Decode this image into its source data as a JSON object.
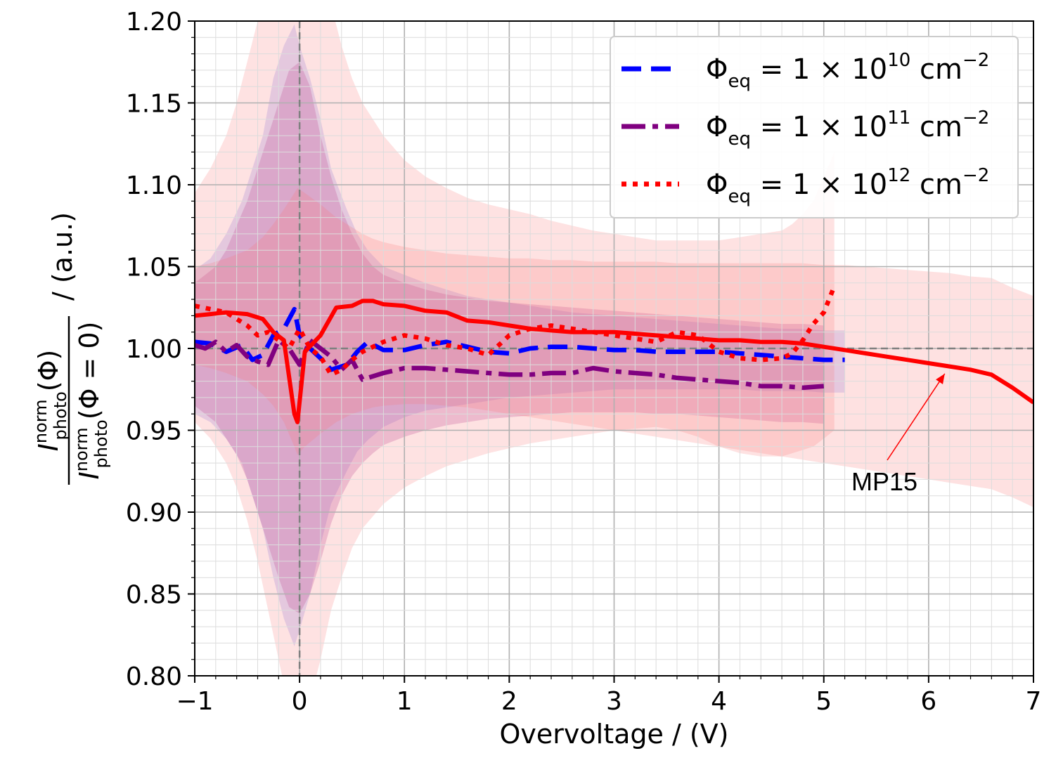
{
  "chart_data": {
    "type": "line",
    "xlabel": "Overvoltage / (V)",
    "ylabel": {
      "numerator": "I",
      "numerator_sup": "norm",
      "numerator_sub": "photo",
      "numerator_arg": "(Φ)",
      "denominator": "I",
      "denominator_sup": "norm",
      "denominator_sub": "photo",
      "denominator_arg": "(Φ = 0)",
      "unit": "/ (a.u.)"
    },
    "xlim": [
      -1,
      7
    ],
    "ylim": [
      0.8,
      1.2
    ],
    "x_ticks": [
      "−1",
      "0",
      "1",
      "2",
      "3",
      "4",
      "5",
      "6",
      "7"
    ],
    "y_ticks": [
      "0.80",
      "0.85",
      "0.90",
      "0.95",
      "1.00",
      "1.05",
      "1.10",
      "1.15",
      "1.20"
    ],
    "grid": true,
    "reference_lines": {
      "x": 0,
      "y": 1.0
    },
    "legend_position": "top-right",
    "series": [
      {
        "name": "Φeq = 1 × 10^10 cm^−2",
        "legend": {
          "base": "Φ",
          "sub": "eq",
          "eq": " = 1 × 10",
          "exp": "10",
          "unit": " cm",
          "unit_exp": "−2"
        },
        "color": "#0000ff",
        "style": "dashed",
        "x": [
          -1.0,
          -0.85,
          -0.7,
          -0.55,
          -0.45,
          -0.35,
          -0.25,
          -0.15,
          -0.05,
          0.0,
          0.1,
          0.2,
          0.3,
          0.45,
          0.55,
          0.65,
          0.8,
          1.0,
          1.2,
          1.4,
          1.6,
          1.8,
          2.0,
          2.2,
          2.4,
          2.6,
          2.8,
          3.0,
          3.2,
          3.4,
          3.6,
          3.8,
          4.0,
          4.2,
          4.4,
          4.6,
          4.8,
          5.0,
          5.2
        ],
        "y": [
          1.004,
          1.003,
          0.998,
          1.002,
          0.993,
          0.996,
          1.008,
          1.012,
          1.024,
          1.008,
          1.0,
          0.994,
          0.987,
          0.99,
          0.998,
          1.004,
          0.999,
          0.999,
          1.002,
          1.004,
          1.001,
          0.998,
          0.997,
          1.0,
          1.001,
          1.001,
          1.0,
          0.999,
          0.999,
          0.998,
          0.998,
          0.998,
          0.998,
          0.997,
          0.996,
          0.995,
          0.994,
          0.993,
          0.993
        ],
        "band_upper": [
          1.048,
          1.055,
          1.07,
          1.09,
          1.11,
          1.13,
          1.165,
          1.185,
          1.198,
          1.185,
          1.165,
          1.14,
          1.11,
          1.085,
          1.07,
          1.06,
          1.05,
          1.045,
          1.04,
          1.036,
          1.032,
          1.03,
          1.028,
          1.026,
          1.024,
          1.022,
          1.021,
          1.02,
          1.019,
          1.018,
          1.017,
          1.016,
          1.015,
          1.014,
          1.013,
          1.012,
          1.012,
          1.011,
          1.011
        ],
        "band_lower": [
          0.96,
          0.955,
          0.945,
          0.93,
          0.91,
          0.89,
          0.86,
          0.835,
          0.818,
          0.828,
          0.85,
          0.88,
          0.905,
          0.925,
          0.937,
          0.944,
          0.952,
          0.958,
          0.962,
          0.964,
          0.966,
          0.968,
          0.97,
          0.971,
          0.972,
          0.973,
          0.974,
          0.975,
          0.975,
          0.975,
          0.975,
          0.975,
          0.975,
          0.975,
          0.974,
          0.974,
          0.974,
          0.973,
          0.973
        ]
      },
      {
        "name": "Φeq = 1 × 10^11 cm^−2",
        "legend": {
          "base": "Φ",
          "sub": "eq",
          "eq": " = 1 × 10",
          "exp": "11",
          "unit": " cm",
          "unit_exp": "−2"
        },
        "color": "#800080",
        "style": "dashdot",
        "x": [
          -1.0,
          -0.9,
          -0.8,
          -0.7,
          -0.6,
          -0.5,
          -0.4,
          -0.3,
          -0.2,
          -0.1,
          0.0,
          0.1,
          0.2,
          0.3,
          0.4,
          0.5,
          0.6,
          0.7,
          0.8,
          1.0,
          1.2,
          1.4,
          1.6,
          1.8,
          2.0,
          2.2,
          2.4,
          2.6,
          2.8,
          3.0,
          3.2,
          3.4,
          3.6,
          3.8,
          4.0,
          4.2,
          4.4,
          4.6,
          4.8,
          5.0
        ],
        "y": [
          1.002,
          1.0,
          1.004,
          0.998,
          1.002,
          0.995,
          0.992,
          0.99,
          1.005,
          1.0,
          0.99,
          1.005,
          1.0,
          0.995,
          0.987,
          0.993,
          0.981,
          0.983,
          0.985,
          0.988,
          0.988,
          0.987,
          0.986,
          0.985,
          0.984,
          0.984,
          0.985,
          0.985,
          0.988,
          0.986,
          0.985,
          0.984,
          0.982,
          0.981,
          0.98,
          0.979,
          0.977,
          0.977,
          0.976,
          0.977
        ],
        "band_upper": [
          1.04,
          1.045,
          1.05,
          1.06,
          1.075,
          1.09,
          1.11,
          1.13,
          1.15,
          1.17,
          1.175,
          1.16,
          1.13,
          1.105,
          1.085,
          1.07,
          1.058,
          1.05,
          1.045,
          1.04,
          1.036,
          1.033,
          1.031,
          1.029,
          1.028,
          1.027,
          1.026,
          1.025,
          1.024,
          1.023,
          1.022,
          1.021,
          1.02,
          1.019,
          1.018,
          1.017,
          1.016,
          1.015,
          1.015,
          1.014
        ],
        "band_lower": [
          0.965,
          0.96,
          0.955,
          0.945,
          0.935,
          0.92,
          0.9,
          0.88,
          0.86,
          0.842,
          0.838,
          0.85,
          0.87,
          0.893,
          0.91,
          0.922,
          0.93,
          0.936,
          0.941,
          0.946,
          0.95,
          0.953,
          0.955,
          0.957,
          0.958,
          0.959,
          0.96,
          0.961,
          0.961,
          0.961,
          0.961,
          0.96,
          0.96,
          0.959,
          0.958,
          0.957,
          0.956,
          0.955,
          0.955,
          0.954
        ]
      },
      {
        "name": "Φeq = 1 × 10^12 cm^−2",
        "legend": {
          "base": "Φ",
          "sub": "eq",
          "eq": " = 1 × 10",
          "exp": "12",
          "unit": " cm",
          "unit_exp": "−2"
        },
        "color": "#ff0000",
        "style": "dotted",
        "x": [
          -1.0,
          -0.85,
          -0.7,
          -0.6,
          -0.5,
          -0.4,
          -0.3,
          -0.2,
          -0.1,
          0.0,
          0.1,
          0.2,
          0.3,
          0.4,
          0.5,
          0.6,
          0.8,
          1.0,
          1.2,
          1.4,
          1.6,
          1.8,
          2.0,
          2.2,
          2.4,
          2.6,
          2.8,
          3.0,
          3.2,
          3.4,
          3.6,
          3.8,
          4.0,
          4.2,
          4.4,
          4.6,
          4.7,
          4.8,
          4.9,
          5.0,
          5.1
        ],
        "y": [
          1.026,
          1.024,
          1.022,
          1.018,
          1.014,
          1.008,
          1.01,
          1.005,
          1.0,
          1.012,
          1.0,
          0.995,
          0.984,
          0.987,
          0.993,
          0.998,
          1.004,
          1.008,
          1.006,
          1.002,
          1.0,
          0.996,
          1.008,
          1.012,
          1.014,
          1.012,
          1.01,
          1.008,
          1.006,
          1.004,
          1.01,
          1.008,
          0.998,
          0.994,
          0.993,
          0.994,
          0.997,
          1.005,
          1.015,
          1.022,
          1.038
        ],
        "band_upper": [
          1.095,
          1.11,
          1.13,
          1.15,
          1.175,
          1.2,
          1.23,
          1.26,
          1.28,
          1.29,
          1.275,
          1.245,
          1.21,
          1.185,
          1.165,
          1.15,
          1.13,
          1.115,
          1.105,
          1.098,
          1.092,
          1.088,
          1.085,
          1.082,
          1.078,
          1.075,
          1.072,
          1.07,
          1.068,
          1.066,
          1.066,
          1.066,
          1.066,
          1.068,
          1.07,
          1.072,
          1.076,
          1.082,
          1.09,
          1.105,
          1.12
        ],
        "band_lower": [
          0.955,
          0.945,
          0.93,
          0.915,
          0.895,
          0.87,
          0.84,
          0.81,
          0.78,
          0.77,
          0.785,
          0.81,
          0.84,
          0.86,
          0.878,
          0.89,
          0.905,
          0.915,
          0.922,
          0.928,
          0.932,
          0.936,
          0.939,
          0.942,
          0.944,
          0.946,
          0.948,
          0.95,
          0.951,
          0.952,
          0.95,
          0.946,
          0.94,
          0.936,
          0.934,
          0.934,
          0.936,
          0.938,
          0.94,
          0.945,
          0.95
        ]
      },
      {
        "name": "MP15",
        "color": "#ff0000",
        "style": "solid",
        "x": [
          -1.0,
          -0.85,
          -0.7,
          -0.5,
          -0.35,
          -0.25,
          -0.15,
          -0.05,
          -0.02,
          0.05,
          0.2,
          0.35,
          0.5,
          0.6,
          0.7,
          0.8,
          1.0,
          1.2,
          1.4,
          1.6,
          1.8,
          2.0,
          2.2,
          2.4,
          2.6,
          2.8,
          3.0,
          3.2,
          3.4,
          3.6,
          3.8,
          4.0,
          4.2,
          4.4,
          4.6,
          4.8,
          5.0,
          5.2,
          5.4,
          5.6,
          5.8,
          6.0,
          6.2,
          6.4,
          6.6,
          6.8,
          7.0
        ],
        "y": [
          1.02,
          1.021,
          1.022,
          1.021,
          1.018,
          1.01,
          1.005,
          0.96,
          0.955,
          0.998,
          1.008,
          1.025,
          1.026,
          1.029,
          1.029,
          1.027,
          1.026,
          1.023,
          1.022,
          1.017,
          1.016,
          1.014,
          1.012,
          1.011,
          1.01,
          1.01,
          1.01,
          1.009,
          1.008,
          1.007,
          1.006,
          1.005,
          1.005,
          1.004,
          1.004,
          1.003,
          1.001,
          0.999,
          0.997,
          0.995,
          0.993,
          0.991,
          0.989,
          0.987,
          0.984,
          0.976,
          0.967
        ],
        "band_upper": [
          1.05,
          1.052,
          1.055,
          1.06,
          1.068,
          1.076,
          1.085,
          1.095,
          1.098,
          1.095,
          1.088,
          1.08,
          1.074,
          1.07,
          1.067,
          1.065,
          1.062,
          1.06,
          1.058,
          1.057,
          1.056,
          1.055,
          1.055,
          1.054,
          1.054,
          1.053,
          1.053,
          1.053,
          1.053,
          1.052,
          1.052,
          1.052,
          1.052,
          1.052,
          1.052,
          1.052,
          1.051,
          1.051,
          1.05,
          1.049,
          1.048,
          1.047,
          1.046,
          1.044,
          1.043,
          1.037,
          1.032
        ],
        "band_lower": [
          0.99,
          0.988,
          0.985,
          0.98,
          0.972,
          0.965,
          0.955,
          0.94,
          0.935,
          0.94,
          0.948,
          0.955,
          0.96,
          0.962,
          0.964,
          0.965,
          0.966,
          0.966,
          0.965,
          0.964,
          0.962,
          0.96,
          0.958,
          0.956,
          0.954,
          0.952,
          0.95,
          0.948,
          0.946,
          0.944,
          0.942,
          0.94,
          0.938,
          0.936,
          0.934,
          0.932,
          0.93,
          0.928,
          0.926,
          0.924,
          0.922,
          0.92,
          0.918,
          0.916,
          0.914,
          0.909,
          0.903
        ],
        "annotation": {
          "text": "MP15",
          "arrow_to_x": 6.1,
          "arrow_to_y": 0.988
        }
      }
    ]
  }
}
